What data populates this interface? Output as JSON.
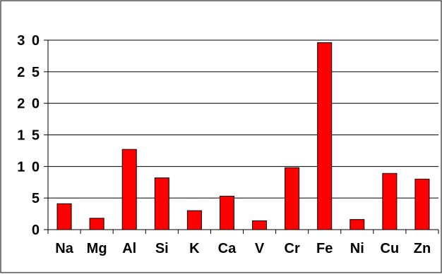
{
  "chart_data": {
    "type": "bar",
    "title": "",
    "xlabel": "",
    "ylabel": "",
    "categories": [
      "Na",
      "Mg",
      "Al",
      "Si",
      "K",
      "Ca",
      "V",
      "Cr",
      "Fe",
      "Ni",
      "Cu",
      "Zn"
    ],
    "values": [
      4.1,
      1.8,
      12.7,
      8.2,
      3.0,
      5.3,
      1.4,
      9.8,
      29.6,
      1.6,
      8.9,
      8.0
    ],
    "ylim": [
      0,
      30
    ],
    "yticks": [
      0,
      5,
      10,
      15,
      20,
      25,
      30
    ],
    "ytick_labels": [
      "0",
      "5",
      "1 0",
      "1 5",
      "2 0",
      "2 5",
      "3 0"
    ],
    "grid": true,
    "legend": "none",
    "colors": {
      "bar": "#ff0000",
      "bar_stroke": "#000000",
      "grid": "#000000",
      "frame": "#000000"
    }
  }
}
